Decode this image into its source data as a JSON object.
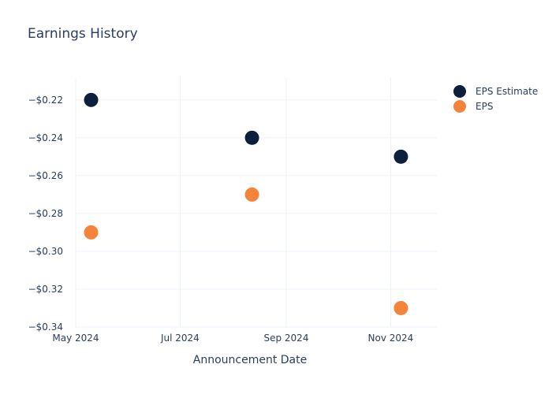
{
  "title": "Earnings History",
  "legend": [
    {
      "label": "EPS Estimate",
      "color": "#0e1f3d"
    },
    {
      "label": "EPS",
      "color": "#f5833a"
    }
  ],
  "chart_data": {
    "type": "scatter",
    "title": "Earnings History",
    "xlabel": "Announcement Date",
    "ylabel": "",
    "x_ticks": [
      "May 2024",
      "Jul 2024",
      "Sep 2024",
      "Nov 2024"
    ],
    "y_ticks": [
      "−$0.22",
      "−$0.24",
      "−$0.26",
      "−$0.28",
      "−$0.30",
      "−$0.32",
      "−$0.34"
    ],
    "y_tick_values": [
      -0.22,
      -0.24,
      -0.26,
      -0.28,
      -0.3,
      -0.32,
      -0.34
    ],
    "ylim": [
      -0.34,
      -0.208
    ],
    "xlim": [
      "2024-05-01",
      "2024-11-28"
    ],
    "x_tick_dates": [
      "2024-05-01",
      "2024-07-01",
      "2024-09-01",
      "2024-11-01"
    ],
    "series": [
      {
        "name": "EPS Estimate",
        "color": "#0e1f3d",
        "x": [
          "2024-05-10",
          "2024-08-12",
          "2024-11-07"
        ],
        "y": [
          -0.22,
          -0.24,
          -0.25
        ]
      },
      {
        "name": "EPS",
        "color": "#f5833a",
        "x": [
          "2024-05-10",
          "2024-08-12",
          "2024-11-07"
        ],
        "y": [
          -0.29,
          -0.27,
          -0.33
        ]
      }
    ],
    "grid": true,
    "legend_position": "top-right"
  }
}
